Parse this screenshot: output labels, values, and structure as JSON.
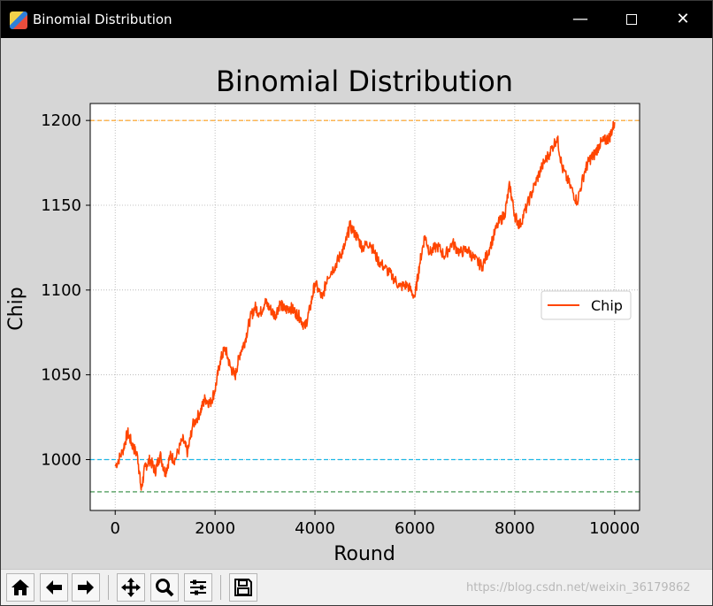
{
  "window": {
    "title": "Binomial Distribution",
    "minimize_glyph": "—",
    "close_glyph": "✕"
  },
  "chart_data": {
    "type": "line",
    "title": "Binomial Distribution",
    "xlabel": "Round",
    "ylabel": "Chip",
    "xlim": [
      -500,
      10500
    ],
    "ylim": [
      970,
      1210
    ],
    "xticks": [
      0,
      2000,
      4000,
      6000,
      8000,
      10000
    ],
    "yticks": [
      1000,
      1050,
      1100,
      1150,
      1200
    ],
    "grid": true,
    "grid_style": "dotted",
    "legend_position": "center-right",
    "series": [
      {
        "name": "Chip",
        "color": "#ff4500",
        "x": [
          0,
          150,
          250,
          350,
          450,
          520,
          600,
          700,
          800,
          900,
          1000,
          1100,
          1200,
          1350,
          1450,
          1550,
          1700,
          1800,
          1900,
          2000,
          2100,
          2200,
          2300,
          2400,
          2500,
          2600,
          2700,
          2800,
          2900,
          3000,
          3100,
          3200,
          3300,
          3400,
          3500,
          3600,
          3700,
          3800,
          3900,
          4000,
          4150,
          4250,
          4400,
          4500,
          4600,
          4700,
          4850,
          4950,
          5100,
          5250,
          5400,
          5550,
          5700,
          5850,
          6000,
          6100,
          6200,
          6300,
          6450,
          6600,
          6750,
          6900,
          7050,
          7200,
          7350,
          7500,
          7650,
          7800,
          7900,
          8000,
          8100,
          8250,
          8400,
          8550,
          8700,
          8850,
          8950,
          9100,
          9250,
          9400,
          9500,
          9600,
          9700,
          9800,
          9900,
          10000
        ],
        "y": [
          996,
          1005,
          1016,
          1008,
          1002,
          982,
          996,
          1000,
          993,
          1003,
          992,
          1002,
          1000,
          1012,
          1004,
          1020,
          1028,
          1036,
          1033,
          1041,
          1058,
          1066,
          1055,
          1049,
          1063,
          1070,
          1083,
          1090,
          1086,
          1093,
          1089,
          1085,
          1092,
          1088,
          1090,
          1087,
          1084,
          1078,
          1089,
          1104,
          1095,
          1108,
          1114,
          1120,
          1126,
          1138,
          1131,
          1125,
          1128,
          1118,
          1113,
          1108,
          1102,
          1103,
          1096,
          1116,
          1132,
          1122,
          1126,
          1120,
          1128,
          1122,
          1124,
          1118,
          1114,
          1125,
          1138,
          1145,
          1162,
          1144,
          1138,
          1150,
          1162,
          1173,
          1181,
          1190,
          1172,
          1162,
          1152,
          1170,
          1177,
          1180,
          1186,
          1188,
          1190,
          1199
        ]
      }
    ],
    "reference_lines": [
      {
        "y": 1200,
        "color": "#ff9f1c",
        "style": "dashed"
      },
      {
        "y": 1000,
        "color": "#1cb8e8",
        "style": "dashed"
      },
      {
        "y": 981,
        "color": "#2e8b3e",
        "style": "dashed"
      }
    ]
  },
  "toolbar": {
    "buttons": [
      {
        "name": "home-button",
        "icon": "home-icon"
      },
      {
        "name": "back-button",
        "icon": "arrow-left-icon"
      },
      {
        "name": "forward-button",
        "icon": "arrow-right-icon"
      },
      {
        "name": "pan-button",
        "icon": "move-icon"
      },
      {
        "name": "zoom-button",
        "icon": "magnifier-icon"
      },
      {
        "name": "configure-subplots-button",
        "icon": "sliders-icon"
      },
      {
        "name": "save-button",
        "icon": "floppy-disk-icon"
      }
    ]
  },
  "watermark": "https://blog.csdn.net/weixin_36179862"
}
